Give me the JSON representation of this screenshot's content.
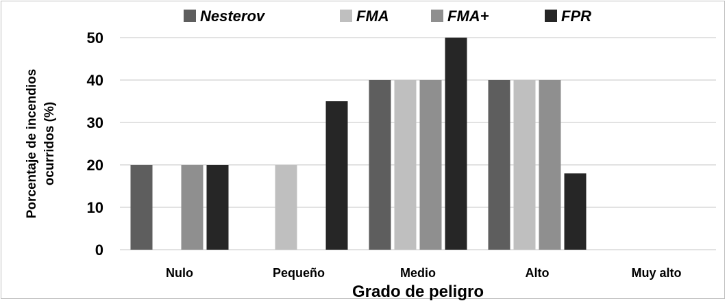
{
  "chart_data": {
    "type": "bar",
    "categories": [
      "Nulo",
      "Pequeño",
      "Medio",
      "Alto",
      "Muy alto"
    ],
    "series": [
      {
        "name": "Nesterov",
        "color": "#5e5e5e",
        "values": [
          20,
          0,
          40,
          40,
          0
        ]
      },
      {
        "name": "FMA",
        "color": "#bfbfbf",
        "values": [
          0,
          20,
          40,
          40,
          0
        ]
      },
      {
        "name": "FMA+",
        "color": "#8f8f8f",
        "values": [
          20,
          0,
          40,
          40,
          0
        ]
      },
      {
        "name": "FPR",
        "color": "#262626",
        "values": [
          20,
          35,
          50,
          18,
          0
        ]
      }
    ],
    "yticks": [
      0,
      10,
      20,
      30,
      40,
      50
    ],
    "ylim": [
      0,
      50
    ],
    "xlabel": "Grado de peligro",
    "ylabel_lines": [
      "Porcentaje de incendios",
      "ocurridos (%)"
    ],
    "grid": "horizontal",
    "legend_position": "top"
  }
}
